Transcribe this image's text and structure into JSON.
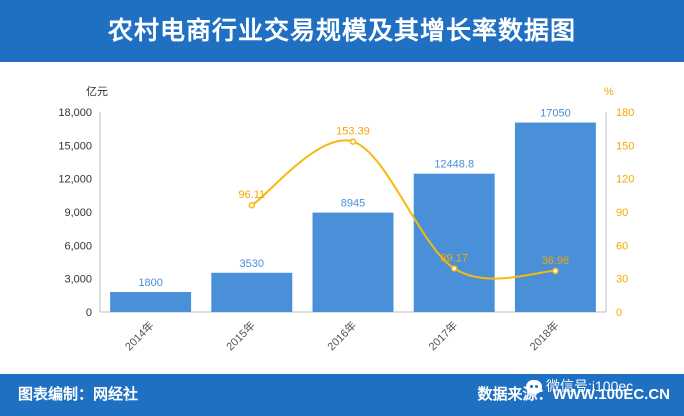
{
  "header": {
    "title": "农村电商行业交易规模及其增长率数据图"
  },
  "footer": {
    "left_label": "图表编制：网经社",
    "right_label": "数据来源：WWW.100EC.CN",
    "wechat_label": "微信号:i100ec"
  },
  "chart_data": {
    "type": "bar",
    "categories": [
      "2014年",
      "2015年",
      "2016年",
      "2017年",
      "2018年"
    ],
    "series": [
      {
        "type": "bar",
        "axis": "left",
        "values": [
          1800,
          3530,
          8945,
          12448.8,
          17050
        ],
        "labels": [
          "1800",
          "3530",
          "8945",
          "12448.8",
          "17050"
        ],
        "color": "#4a90d9"
      },
      {
        "type": "line",
        "axis": "right",
        "values": [
          null,
          96.11,
          153.39,
          39.17,
          36.96
        ],
        "labels": [
          "",
          "96.11",
          "153.39",
          "39.17",
          "36.96"
        ],
        "color": "#f5b90f"
      }
    ],
    "y_left": {
      "unit": "亿元",
      "range": [
        0,
        18000
      ],
      "ticks": [
        "0",
        "3,000",
        "6,000",
        "9,000",
        "12,000",
        "15,000",
        "18,000"
      ]
    },
    "y_right": {
      "unit": "%",
      "range": [
        0,
        180
      ],
      "ticks": [
        "0",
        "30",
        "60",
        "90",
        "120",
        "150",
        "180"
      ]
    },
    "grid": false,
    "legend": "none"
  }
}
